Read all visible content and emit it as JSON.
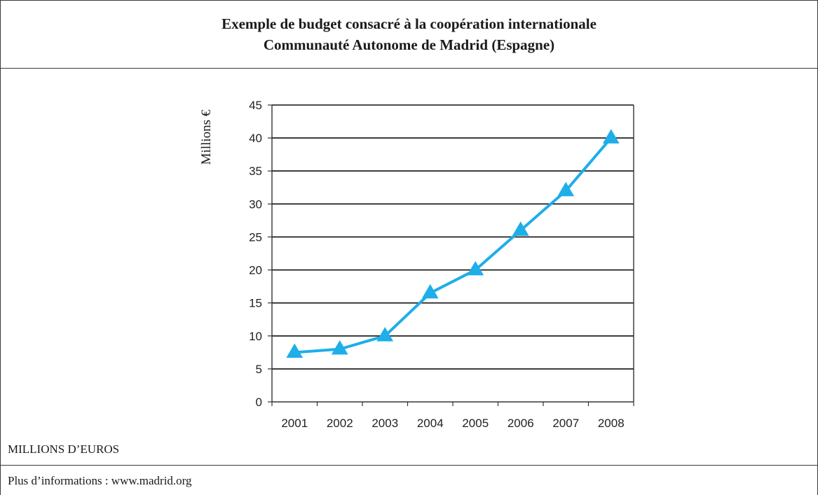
{
  "header": {
    "title_line1": "Exemple de budget consacré à la coopération internationale",
    "title_line2": "Communauté Autonome de Madrid (Espagne)"
  },
  "unit_caption": "MILLIONS D’EUROS",
  "footer": {
    "info": "Plus d’informations : www.madrid.org"
  },
  "chart_data": {
    "type": "line",
    "title": "",
    "xlabel": "",
    "ylabel": "Millions €",
    "categories": [
      "2001",
      "2002",
      "2003",
      "2004",
      "2005",
      "2006",
      "2007",
      "2008"
    ],
    "series": [
      {
        "values": [
          7.5,
          8,
          10,
          16.5,
          20,
          26,
          32,
          40
        ],
        "color": "#1eaee8",
        "marker": "triangle"
      }
    ],
    "ylim": [
      0,
      45
    ],
    "yticks": [
      0,
      5,
      10,
      15,
      20,
      25,
      30,
      35,
      40,
      45
    ],
    "grid": "horizontal",
    "legend": "none"
  }
}
